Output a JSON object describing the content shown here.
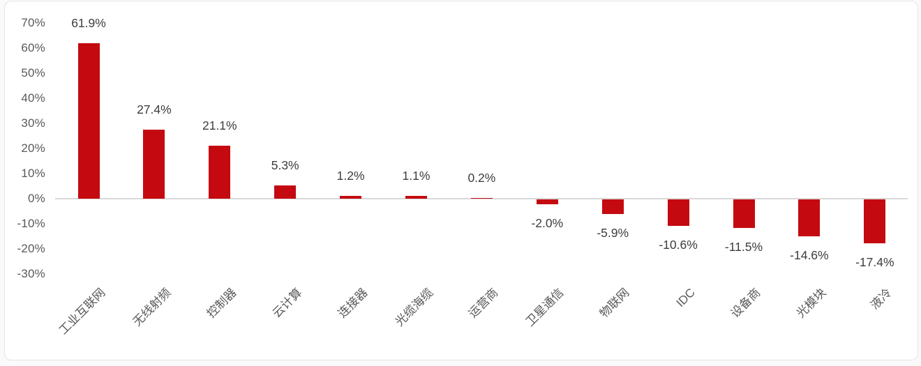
{
  "chart_data": {
    "type": "bar",
    "title": "",
    "xlabel": "",
    "ylabel": "",
    "legend": "none",
    "grid": false,
    "categories": [
      "工业互联网",
      "无线射频",
      "控制器",
      "云计算",
      "连接器",
      "光缆海缆",
      "运营商",
      "卫星通信",
      "物联网",
      "IDC",
      "设备商",
      "光模块",
      "液冷"
    ],
    "values": [
      61.9,
      27.4,
      21.1,
      5.3,
      1.2,
      1.1,
      0.2,
      -2.0,
      -5.9,
      -10.6,
      -11.5,
      -14.6,
      -17.4
    ],
    "value_labels": [
      "61.9%",
      "27.4%",
      "21.1%",
      "5.3%",
      "1.2%",
      "1.1%",
      "0.2%",
      "-2.0%",
      "-5.9%",
      "-10.6%",
      "-11.5%",
      "-14.6%",
      "-17.4%"
    ],
    "y_axis": {
      "ticks": [
        "70%",
        "60%",
        "50%",
        "40%",
        "30%",
        "20%",
        "10%",
        "0%",
        "-10%",
        "-20%",
        "-30%"
      ],
      "max": 70,
      "min": -30,
      "step": 10
    },
    "colors": {
      "bar": "#c40a10",
      "axis_line": "#d9d9d9",
      "tick_text": "#595959",
      "value_text": "#3d3d3d",
      "category_text": "#595959",
      "background": "#ffffff"
    }
  }
}
